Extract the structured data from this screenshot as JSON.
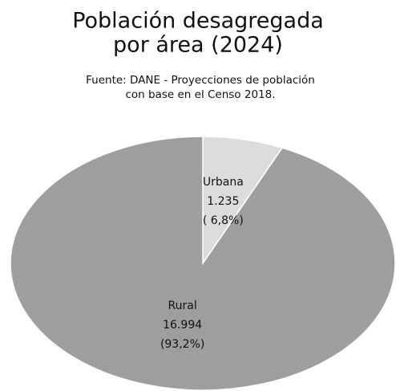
{
  "chart_data": {
    "type": "pie",
    "title": [
      "Población desagregada",
      "por área (2024)"
    ],
    "subtitle": [
      "Fuente: DANE - Proyecciones de población",
      "con base en el Censo 2018."
    ],
    "categories": [
      "Urbana",
      "Rural"
    ],
    "values": [
      1235,
      16994
    ],
    "value_labels": [
      "1.235",
      "16.994"
    ],
    "percentages": [
      6.8,
      93.2
    ],
    "percentage_labels": [
      "( 6,8%)",
      "(93,2%)"
    ],
    "colors": [
      "#dcdcdc",
      "#9e9e9e"
    ]
  }
}
